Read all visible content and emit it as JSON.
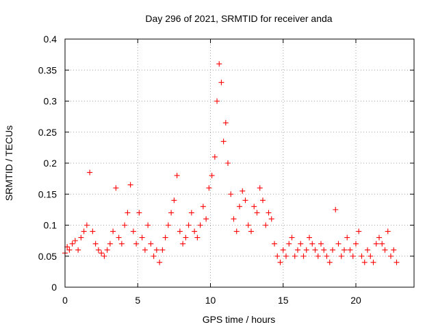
{
  "chart_data": {
    "type": "scatter",
    "title": "Day 296 of 2021, SRMTID for receiver anda",
    "xlabel": "GPS time / hours",
    "ylabel": "SRMTID / TECUs",
    "xlim": [
      0,
      24
    ],
    "ylim": [
      0,
      0.4
    ],
    "xticks": [
      0,
      5,
      10,
      15,
      20
    ],
    "xtick_labels": [
      "0",
      "5",
      "10",
      "15",
      "20"
    ],
    "yticks": [
      0,
      0.05,
      0.1,
      0.15,
      0.2,
      0.25,
      0.3,
      0.35,
      0.4
    ],
    "ytick_labels": [
      "0",
      "0.05",
      "0.1",
      "0.15",
      "0.2",
      "0.25",
      "0.3",
      "0.35",
      "0.4"
    ],
    "grid": true,
    "marker": "plus",
    "color": "#ff0000",
    "series": [
      {
        "name": "SRMTID",
        "x": [
          0.0,
          0.15,
          0.3,
          0.5,
          0.7,
          0.9,
          1.1,
          1.3,
          1.5,
          1.7,
          1.9,
          2.1,
          2.3,
          2.5,
          2.7,
          2.9,
          3.1,
          3.3,
          3.5,
          3.7,
          3.9,
          4.1,
          4.3,
          4.5,
          4.7,
          4.9,
          5.1,
          5.3,
          5.5,
          5.7,
          5.9,
          6.1,
          6.3,
          6.5,
          6.7,
          6.9,
          7.1,
          7.3,
          7.5,
          7.7,
          7.9,
          8.1,
          8.3,
          8.5,
          8.7,
          8.9,
          9.1,
          9.3,
          9.5,
          9.7,
          9.9,
          10.1,
          10.3,
          10.45,
          10.6,
          10.75,
          10.9,
          11.05,
          11.2,
          11.4,
          11.6,
          11.8,
          12.0,
          12.2,
          12.4,
          12.6,
          12.8,
          13.0,
          13.2,
          13.4,
          13.6,
          13.8,
          14.0,
          14.2,
          14.4,
          14.6,
          14.8,
          15.0,
          15.2,
          15.4,
          15.6,
          15.8,
          16.0,
          16.2,
          16.4,
          16.6,
          16.8,
          17.0,
          17.2,
          17.4,
          17.6,
          17.8,
          18.0,
          18.2,
          18.4,
          18.6,
          18.8,
          19.0,
          19.2,
          19.4,
          19.6,
          19.8,
          20.0,
          20.2,
          20.4,
          20.6,
          20.8,
          21.0,
          21.2,
          21.4,
          21.6,
          21.8,
          22.0,
          22.2,
          22.4,
          22.6,
          22.8
        ],
        "y": [
          0.055,
          0.065,
          0.06,
          0.07,
          0.075,
          0.06,
          0.08,
          0.09,
          0.1,
          0.185,
          0.09,
          0.07,
          0.06,
          0.055,
          0.05,
          0.06,
          0.07,
          0.09,
          0.16,
          0.08,
          0.07,
          0.1,
          0.12,
          0.165,
          0.09,
          0.07,
          0.12,
          0.08,
          0.06,
          0.1,
          0.07,
          0.05,
          0.06,
          0.04,
          0.06,
          0.08,
          0.1,
          0.12,
          0.14,
          0.18,
          0.09,
          0.07,
          0.08,
          0.1,
          0.12,
          0.09,
          0.08,
          0.1,
          0.13,
          0.11,
          0.16,
          0.18,
          0.21,
          0.3,
          0.36,
          0.33,
          0.235,
          0.265,
          0.2,
          0.15,
          0.11,
          0.09,
          0.13,
          0.155,
          0.14,
          0.1,
          0.09,
          0.13,
          0.12,
          0.16,
          0.14,
          0.1,
          0.12,
          0.11,
          0.07,
          0.05,
          0.04,
          0.06,
          0.05,
          0.07,
          0.08,
          0.05,
          0.06,
          0.07,
          0.05,
          0.06,
          0.08,
          0.07,
          0.06,
          0.05,
          0.07,
          0.06,
          0.05,
          0.04,
          0.06,
          0.125,
          0.07,
          0.05,
          0.06,
          0.08,
          0.06,
          0.05,
          0.07,
          0.09,
          0.05,
          0.04,
          0.06,
          0.05,
          0.04,
          0.07,
          0.08,
          0.07,
          0.06,
          0.09,
          0.05,
          0.06,
          0.04
        ]
      }
    ]
  }
}
